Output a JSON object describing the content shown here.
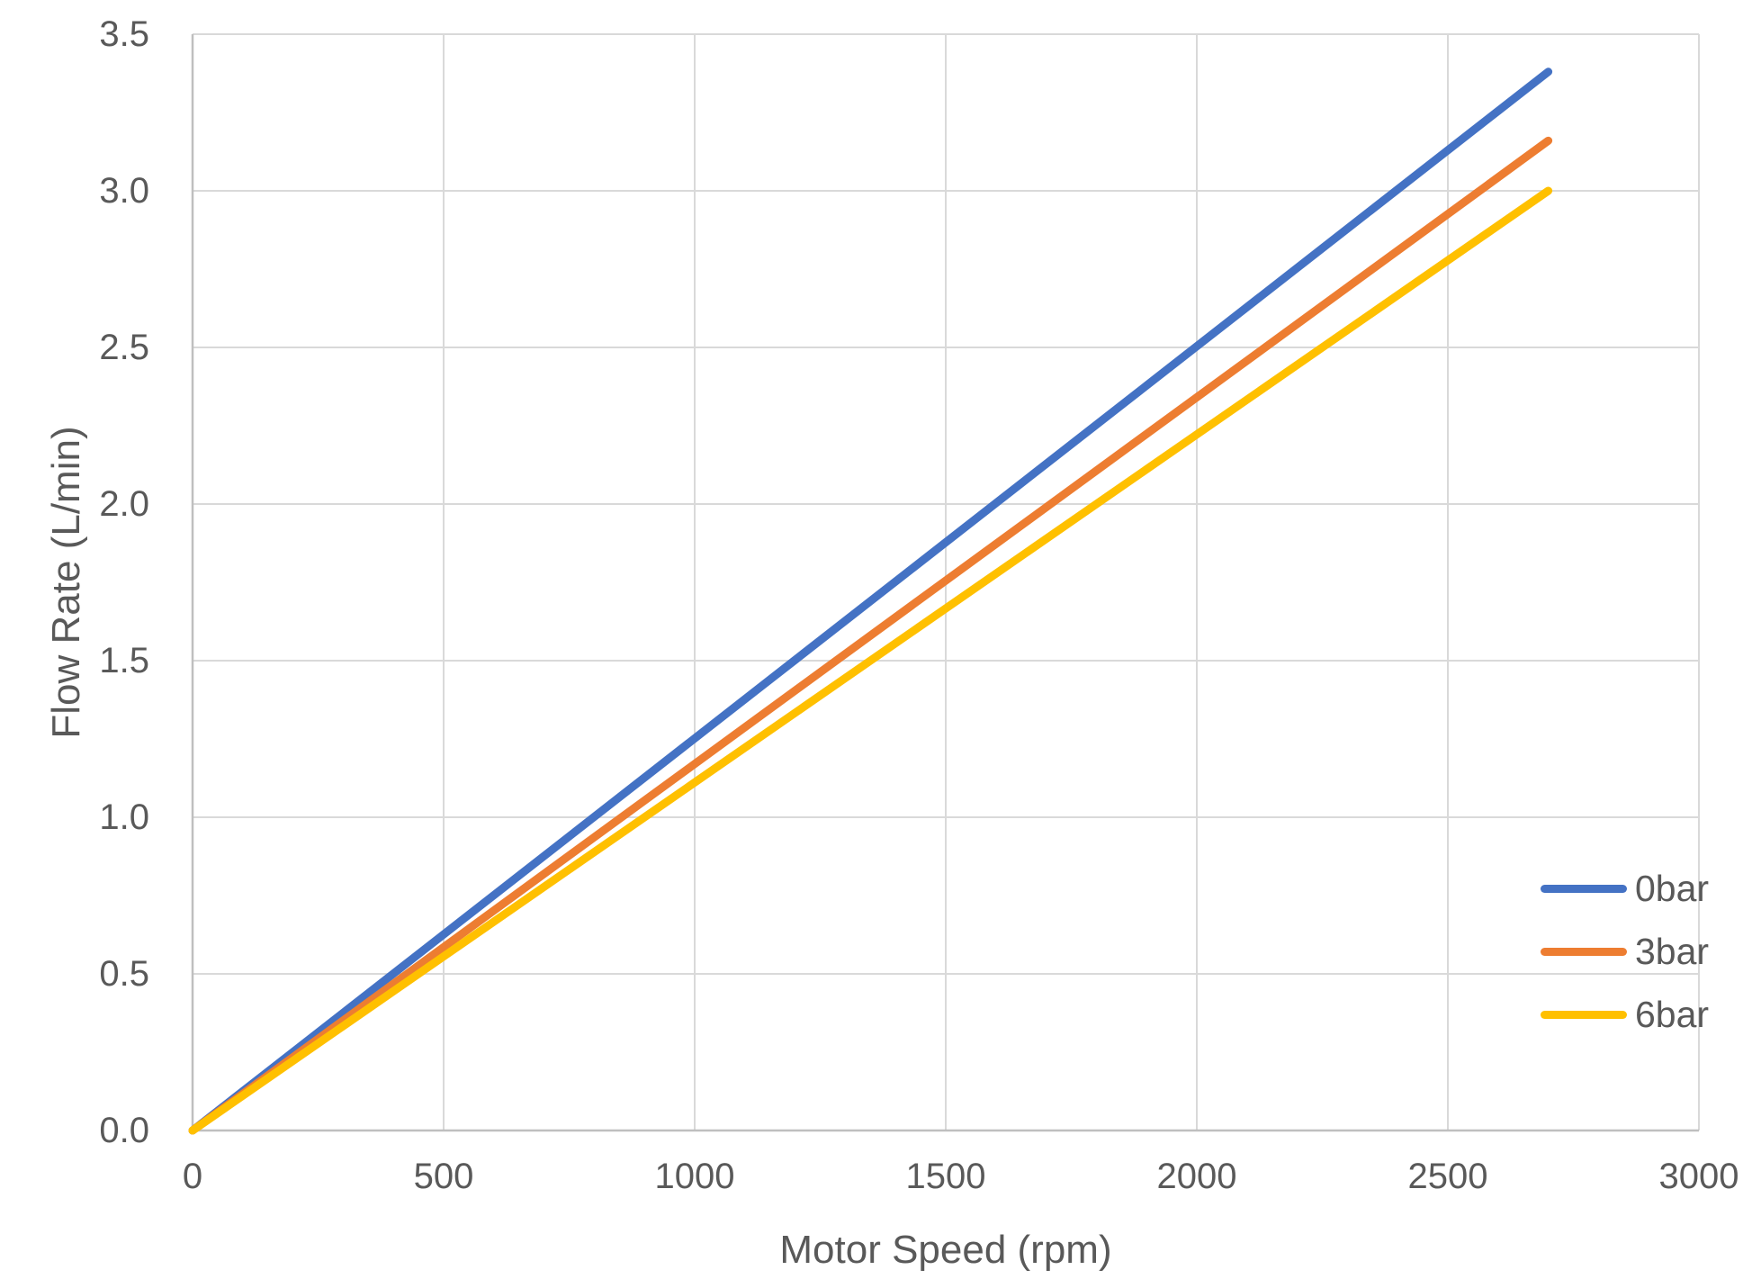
{
  "colors": {
    "background": "#FFFFFF",
    "gridline": "#D9D9D9",
    "axis_line": "#BFBFBF",
    "text": "#595959"
  },
  "chart_data": {
    "type": "line",
    "title": "",
    "xlabel": "Motor Speed (rpm)",
    "ylabel": "Flow Rate (L/min)",
    "xlim": [
      0,
      3000
    ],
    "ylim": [
      0,
      3.5
    ],
    "grid": true,
    "legend_position": "right-inside",
    "x_ticks": [
      0,
      500,
      1000,
      1500,
      2000,
      2500,
      3000
    ],
    "x_tick_labels": [
      "0",
      "500",
      "1000",
      "1500",
      "2000",
      "2500",
      "3000"
    ],
    "y_ticks": [
      0,
      0.5,
      1,
      1.5,
      2,
      2.5,
      3,
      3.5
    ],
    "y_tick_labels": [
      "0.0",
      "0.5",
      "1.0",
      "1.5",
      "2.0",
      "2.5",
      "3.0",
      "3.5"
    ],
    "series": [
      {
        "name": "0bar",
        "color": "#4472C4",
        "points": [
          [
            0,
            0
          ],
          [
            2700,
            3.38
          ]
        ]
      },
      {
        "name": "3bar",
        "color": "#ED7D31",
        "points": [
          [
            0,
            0
          ],
          [
            2700,
            3.16
          ]
        ]
      },
      {
        "name": "6bar",
        "color": "#FFC000",
        "points": [
          [
            0,
            0
          ],
          [
            2700,
            3.0
          ]
        ]
      }
    ]
  }
}
